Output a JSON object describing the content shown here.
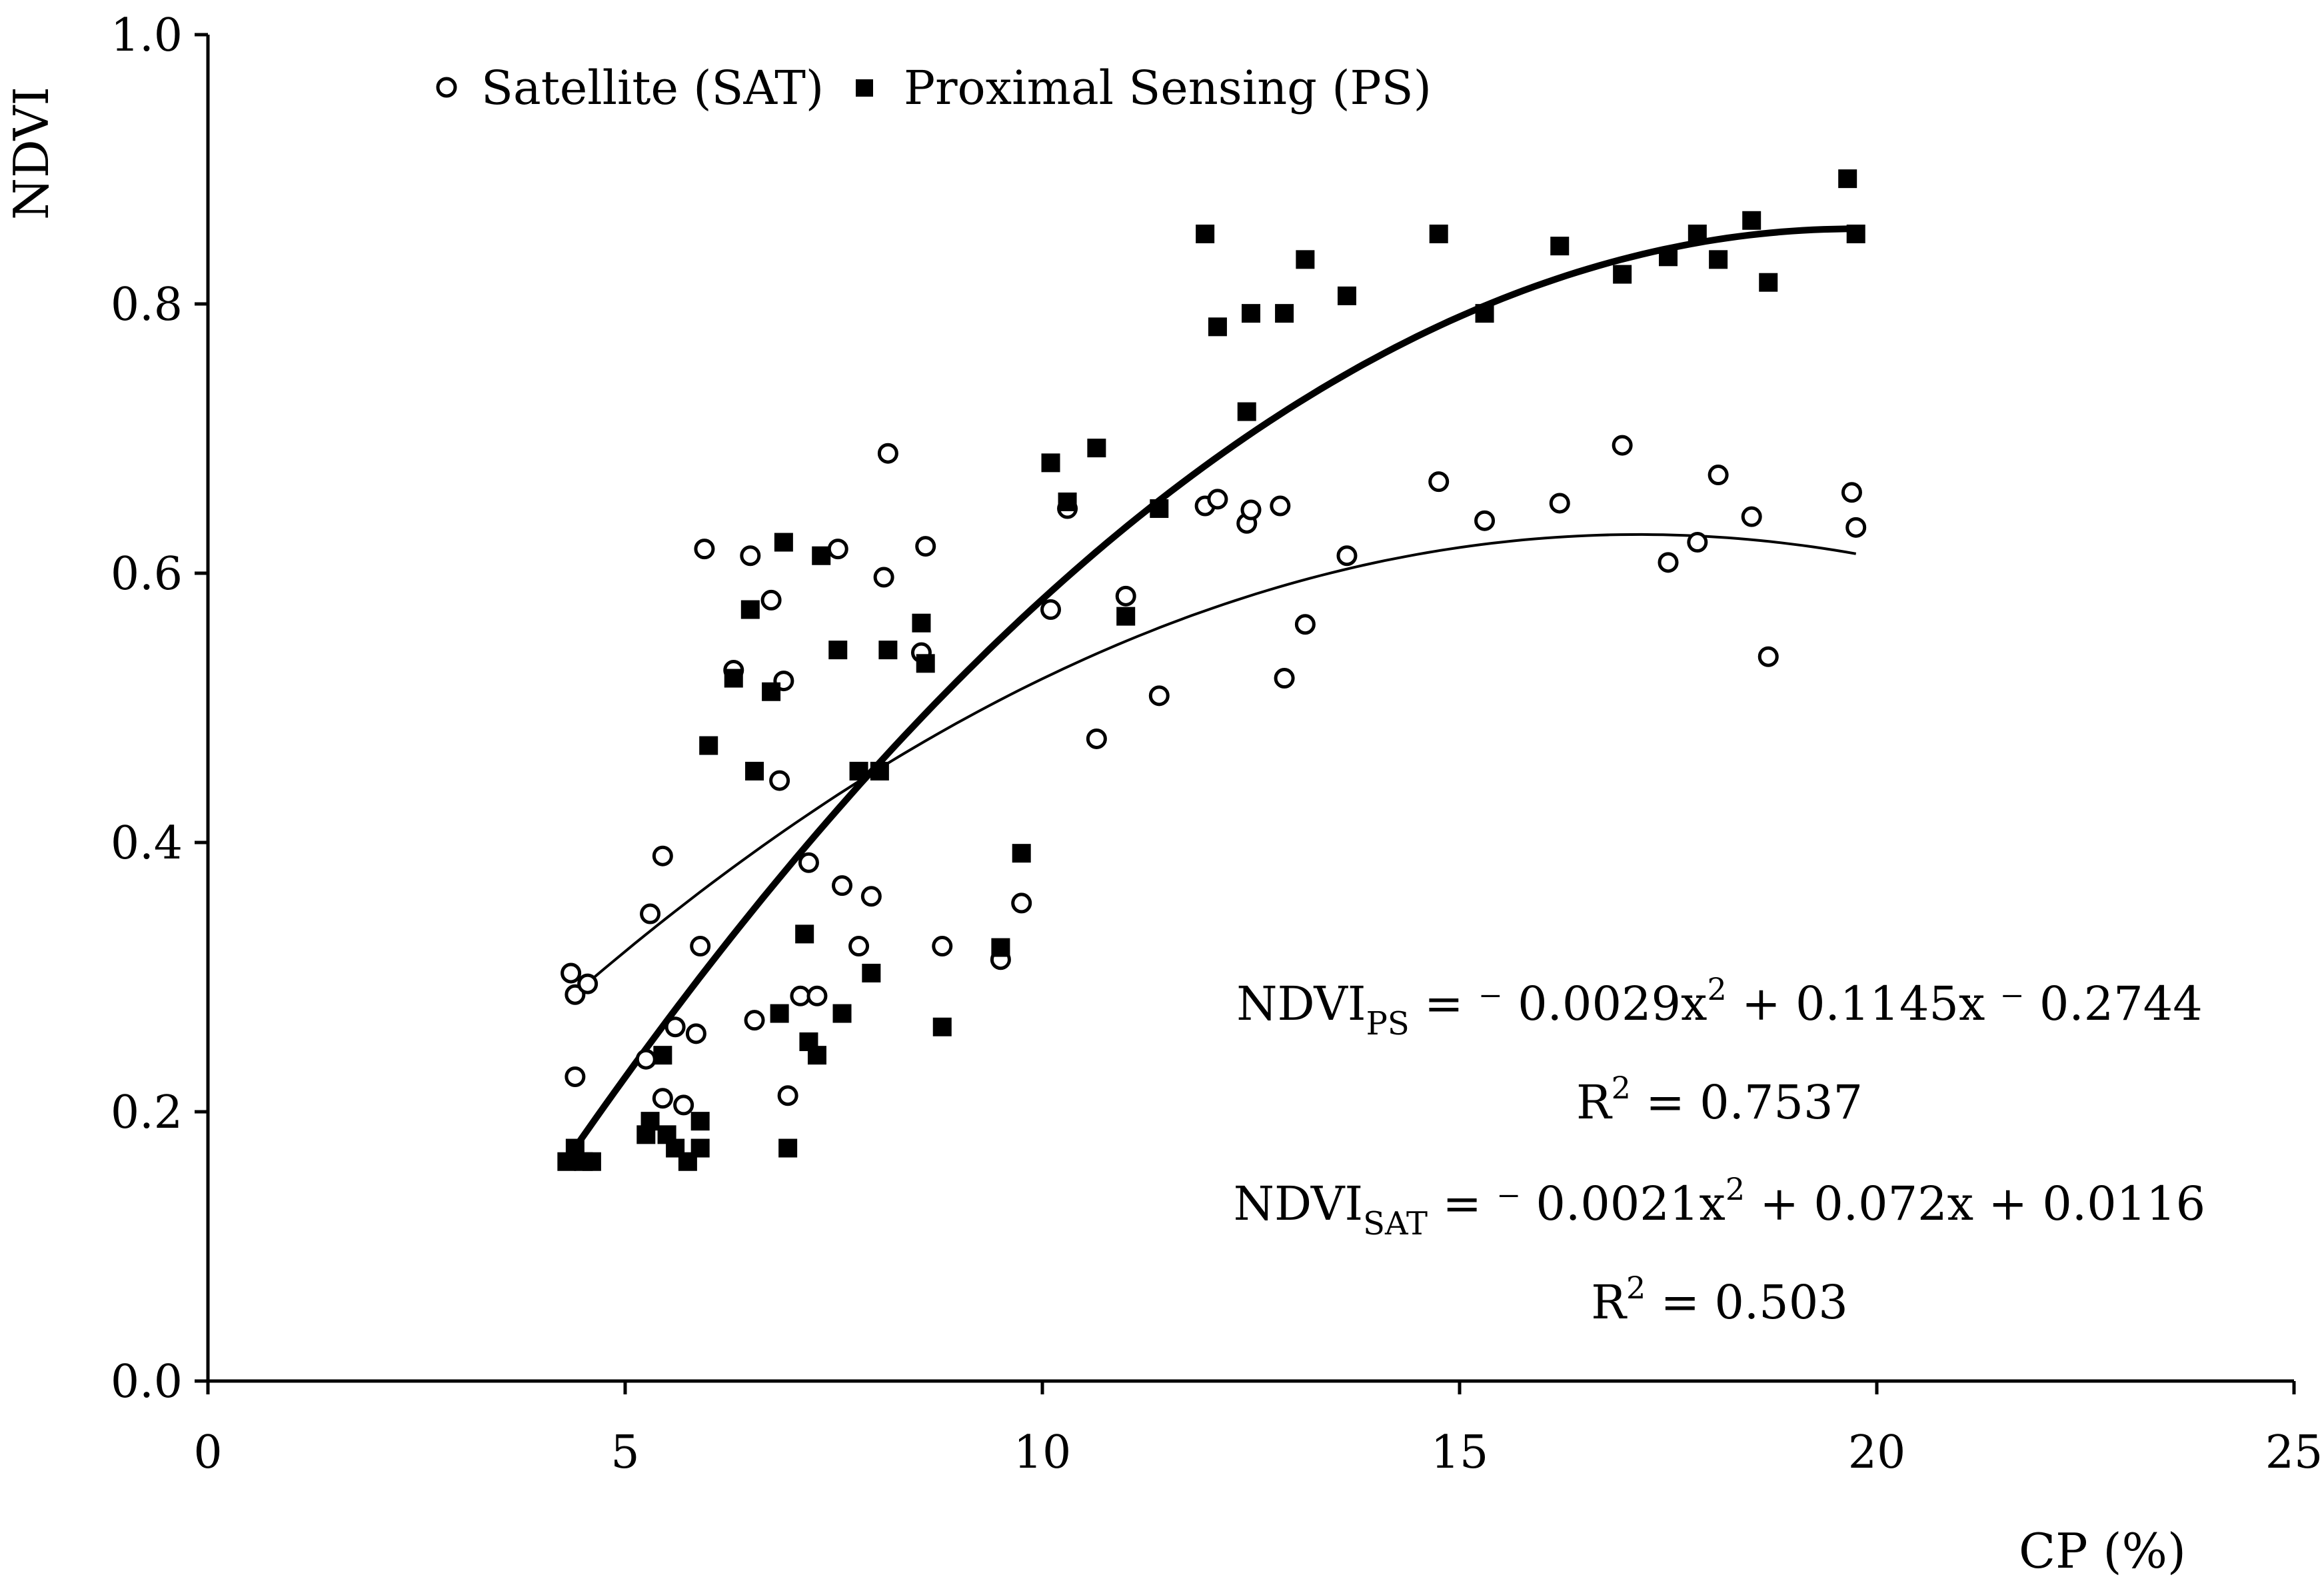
{
  "chart_data": {
    "type": "scatter",
    "xlabel": "CP (%)",
    "ylabel": "NDVI",
    "xlim": [
      0,
      25
    ],
    "ylim": [
      0.0,
      1.0
    ],
    "x_ticks": [
      "0",
      "5",
      "10",
      "15",
      "20",
      "25"
    ],
    "y_ticks": [
      "0.0",
      "0.2",
      "0.4",
      "0.6",
      "0.8",
      "1.0"
    ],
    "grid": false,
    "legend_position": "top-left",
    "series": [
      {
        "name": "Satellite (SAT)",
        "marker": "open-circle",
        "points": [
          [
            4.35,
            0.303
          ],
          [
            4.4,
            0.287
          ],
          [
            4.4,
            0.226
          ],
          [
            4.55,
            0.295
          ],
          [
            5.25,
            0.239
          ],
          [
            5.3,
            0.347
          ],
          [
            5.45,
            0.39
          ],
          [
            5.45,
            0.21
          ],
          [
            5.6,
            0.263
          ],
          [
            5.7,
            0.205
          ],
          [
            5.85,
            0.258
          ],
          [
            5.9,
            0.323
          ],
          [
            5.95,
            0.618
          ],
          [
            6.3,
            0.528
          ],
          [
            6.5,
            0.613
          ],
          [
            6.55,
            0.268
          ],
          [
            6.75,
            0.58
          ],
          [
            6.85,
            0.446
          ],
          [
            6.9,
            0.52
          ],
          [
            6.95,
            0.212
          ],
          [
            7.1,
            0.286
          ],
          [
            7.2,
            0.385
          ],
          [
            7.3,
            0.286
          ],
          [
            7.55,
            0.618
          ],
          [
            7.6,
            0.368
          ],
          [
            7.8,
            0.323
          ],
          [
            7.95,
            0.36
          ],
          [
            8.1,
            0.597
          ],
          [
            8.15,
            0.689
          ],
          [
            8.55,
            0.541
          ],
          [
            8.6,
            0.62
          ],
          [
            8.8,
            0.323
          ],
          [
            9.5,
            0.313
          ],
          [
            9.75,
            0.355
          ],
          [
            10.1,
            0.573
          ],
          [
            10.3,
            0.648
          ],
          [
            10.65,
            0.477
          ],
          [
            11.0,
            0.583
          ],
          [
            11.4,
            0.509
          ],
          [
            11.95,
            0.65
          ],
          [
            12.1,
            0.655
          ],
          [
            12.45,
            0.637
          ],
          [
            12.5,
            0.647
          ],
          [
            12.85,
            0.65
          ],
          [
            12.9,
            0.522
          ],
          [
            13.15,
            0.562
          ],
          [
            13.65,
            0.613
          ],
          [
            14.75,
            0.668
          ],
          [
            15.3,
            0.639
          ],
          [
            16.2,
            0.652
          ],
          [
            16.95,
            0.695
          ],
          [
            17.5,
            0.608
          ],
          [
            17.85,
            0.623
          ],
          [
            18.1,
            0.673
          ],
          [
            18.5,
            0.642
          ],
          [
            18.7,
            0.538
          ],
          [
            19.7,
            0.66
          ],
          [
            19.75,
            0.634
          ]
        ],
        "trend": {
          "a": -0.0021,
          "b": 0.072,
          "c": 0.0116,
          "x_range": [
            4.35,
            19.75
          ]
        }
      },
      {
        "name": "Proximal Sensing (PS)",
        "marker": "filled-square",
        "points": [
          [
            4.3,
            0.163
          ],
          [
            4.4,
            0.173
          ],
          [
            4.5,
            0.163
          ],
          [
            4.6,
            0.163
          ],
          [
            5.25,
            0.183
          ],
          [
            5.3,
            0.193
          ],
          [
            5.45,
            0.242
          ],
          [
            5.5,
            0.183
          ],
          [
            5.6,
            0.173
          ],
          [
            5.75,
            0.163
          ],
          [
            5.9,
            0.173
          ],
          [
            5.9,
            0.193
          ],
          [
            6.0,
            0.472
          ],
          [
            6.3,
            0.522
          ],
          [
            6.5,
            0.573
          ],
          [
            6.55,
            0.453
          ],
          [
            6.75,
            0.512
          ],
          [
            6.85,
            0.273
          ],
          [
            6.9,
            0.623
          ],
          [
            6.95,
            0.173
          ],
          [
            7.15,
            0.332
          ],
          [
            7.2,
            0.252
          ],
          [
            7.3,
            0.242
          ],
          [
            7.35,
            0.613
          ],
          [
            7.55,
            0.543
          ],
          [
            7.6,
            0.273
          ],
          [
            7.8,
            0.453
          ],
          [
            7.95,
            0.303
          ],
          [
            8.05,
            0.453
          ],
          [
            8.15,
            0.543
          ],
          [
            8.55,
            0.563
          ],
          [
            8.6,
            0.533
          ],
          [
            8.8,
            0.263
          ],
          [
            9.5,
            0.322
          ],
          [
            9.75,
            0.392
          ],
          [
            10.1,
            0.682
          ],
          [
            10.3,
            0.653
          ],
          [
            10.65,
            0.693
          ],
          [
            11.0,
            0.568
          ],
          [
            11.4,
            0.648
          ],
          [
            11.95,
            0.852
          ],
          [
            12.1,
            0.783
          ],
          [
            12.45,
            0.72
          ],
          [
            12.5,
            0.793
          ],
          [
            12.9,
            0.793
          ],
          [
            13.15,
            0.833
          ],
          [
            13.65,
            0.806
          ],
          [
            14.75,
            0.852
          ],
          [
            15.3,
            0.793
          ],
          [
            16.2,
            0.843
          ],
          [
            16.95,
            0.822
          ],
          [
            17.5,
            0.835
          ],
          [
            17.85,
            0.852
          ],
          [
            18.1,
            0.833
          ],
          [
            18.5,
            0.862
          ],
          [
            18.7,
            0.816
          ],
          [
            19.65,
            0.893
          ],
          [
            19.75,
            0.852
          ]
        ],
        "trend": {
          "a": -0.0029,
          "b": 0.1145,
          "c": -0.2744,
          "x_range": [
            4.35,
            19.75
          ]
        }
      }
    ],
    "annotations": {
      "ps_equation": {
        "prefix": "NDVI",
        "sub": "PS",
        "body": " = ⁻ 0.0029x",
        "sup": "2",
        "tail": " + 0.1145x ⁻ 0.2744"
      },
      "ps_r2": {
        "prefix": "R",
        "sup": "2",
        "tail": " = 0.7537"
      },
      "sat_equation": {
        "prefix": "NDVI",
        "sub": "SAT",
        "body": " = ⁻ 0.0021x",
        "sup": "2",
        "tail": " + 0.072x + 0.0116"
      },
      "sat_r2": {
        "prefix": "R",
        "sup": "2",
        "tail": " = 0.503"
      }
    }
  }
}
